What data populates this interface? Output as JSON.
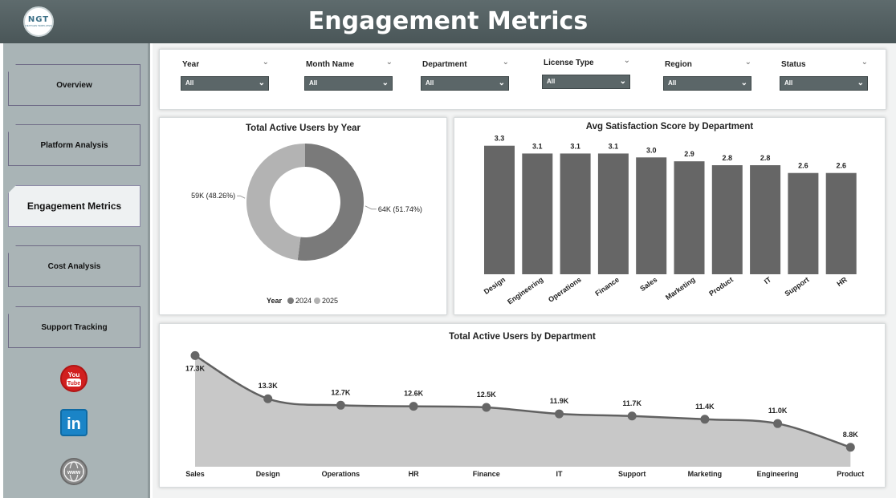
{
  "header": {
    "title": "Engagement Metrics",
    "logo_text": "NGT",
    "logo_subtext": "NEXTGEN TEMPLATES"
  },
  "sidebar": {
    "items": [
      {
        "label": "Overview",
        "active": false
      },
      {
        "label": "Platform Analysis",
        "active": false
      },
      {
        "label": "Engagement Metrics",
        "active": true
      },
      {
        "label": "Cost Analysis",
        "active": false
      },
      {
        "label": "Support Tracking",
        "active": false
      }
    ],
    "social": [
      {
        "icon": "youtube-icon",
        "label": "You Tube"
      },
      {
        "icon": "linkedin-icon",
        "label": "in"
      },
      {
        "icon": "website-globe-icon",
        "label": "www"
      }
    ]
  },
  "filters": [
    {
      "label": "Year",
      "value": "All"
    },
    {
      "label": "Month Name",
      "value": "All"
    },
    {
      "label": "Department",
      "value": "All"
    },
    {
      "label": "License Type",
      "value": "All"
    },
    {
      "label": "Region",
      "value": "All"
    },
    {
      "label": "Status",
      "value": "All"
    }
  ],
  "colors": {
    "dark_series": "#7a7a7a",
    "light_series": "#b3b3b3",
    "bar": "#666666",
    "area_fill": "#c8c8c8",
    "line": "#616161",
    "header": "#4f5b5d"
  },
  "chart_data": [
    {
      "type": "pie",
      "title": "Total Active Users by Year",
      "legend_title": "Year",
      "legend_position": "bottom",
      "categories": [
        "2024",
        "2025"
      ],
      "values": [
        64,
        59
      ],
      "labels": [
        "64K (51.74%)",
        "59K (48.26%)"
      ],
      "colors": [
        "#7a7a7a",
        "#b3b3b3"
      ]
    },
    {
      "type": "bar",
      "title": "Avg Satisfaction Score by Department",
      "categories": [
        "Design",
        "Engineering",
        "Operations",
        "Finance",
        "Sales",
        "Marketing",
        "Product",
        "IT",
        "Support",
        "HR"
      ],
      "values": [
        3.3,
        3.1,
        3.1,
        3.1,
        3.0,
        2.9,
        2.8,
        2.8,
        2.6,
        2.6
      ],
      "labels": [
        "3.3",
        "3.1",
        "3.1",
        "3.1",
        "3.0",
        "2.9",
        "2.8",
        "2.8",
        "2.6",
        "2.6"
      ],
      "ylim": [
        0,
        3.5
      ],
      "grid": false
    },
    {
      "type": "area",
      "title": "Total Active Users by Department",
      "categories": [
        "Sales",
        "Design",
        "Operations",
        "HR",
        "Finance",
        "IT",
        "Support",
        "Marketing",
        "Engineering",
        "Product"
      ],
      "values": [
        17.3,
        13.3,
        12.7,
        12.6,
        12.5,
        11.9,
        11.7,
        11.4,
        11.0,
        8.8
      ],
      "labels": [
        "17.3K",
        "13.3K",
        "12.7K",
        "12.6K",
        "12.5K",
        "11.9K",
        "11.7K",
        "11.4K",
        "11.0K",
        "8.8K"
      ],
      "ylim": [
        0,
        18
      ]
    }
  ]
}
